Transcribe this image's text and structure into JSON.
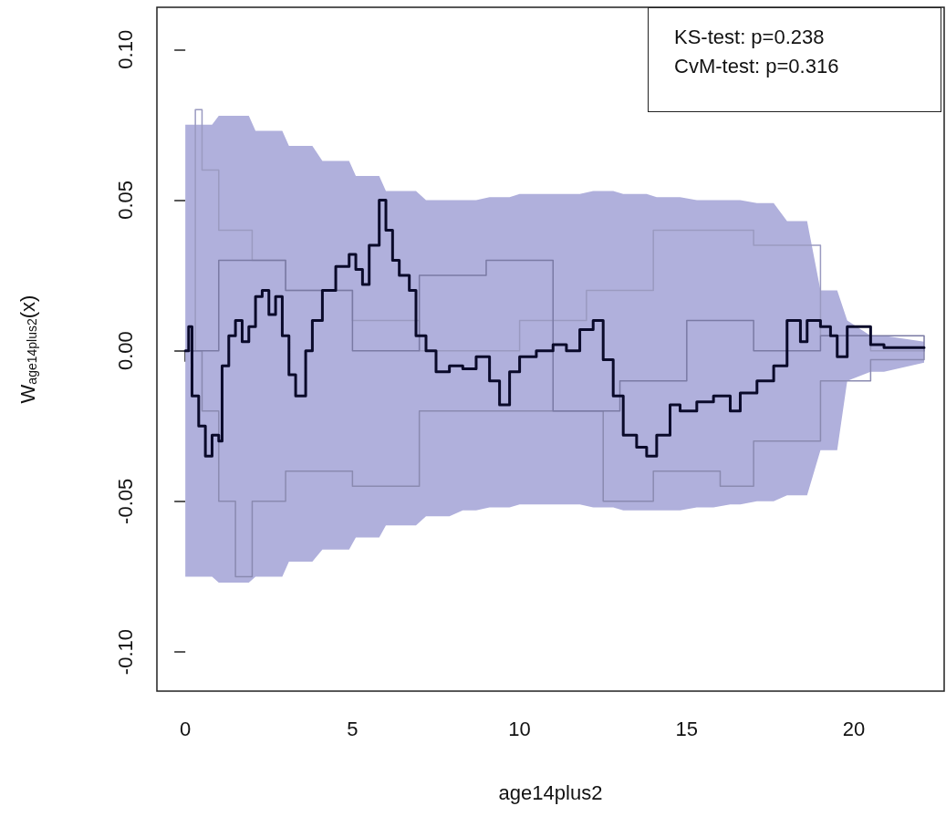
{
  "chart_data": {
    "type": "step",
    "xlabel": "age14plus2",
    "ylabel": "W$_{age14plus2}$(x)",
    "annotations": [
      "KS-test: p=0.238",
      "CvM-test: p=0.316"
    ],
    "xlim": [
      -0.85,
      22.7
    ],
    "ylim": [
      -0.113,
      0.114
    ],
    "xticks": [
      0,
      5,
      10,
      15,
      20
    ],
    "yticks": [
      {
        "value": -0.1,
        "label": "-0.10"
      },
      {
        "value": -0.05,
        "label": "-0.05"
      },
      {
        "value": 0,
        "label": "0.00"
      },
      {
        "value": 0.05,
        "label": "0.05"
      },
      {
        "value": 0.1,
        "label": "0.10"
      }
    ],
    "grid": false,
    "marker": "none",
    "line_style": "solid",
    "series": [
      {
        "color": "#9a9ac0",
        "x": [
          0,
          0.3,
          0.5,
          1,
          2,
          3,
          5,
          7,
          10,
          12,
          14,
          16,
          17,
          19,
          20.5,
          22.1
        ],
        "values": [
          0,
          0.08,
          0.06,
          0.04,
          0.03,
          0.02,
          0.01,
          0,
          0.01,
          0.02,
          0.04,
          0.04,
          0.035,
          0.005,
          0,
          0
        ]
      },
      {
        "color": "#8a8ab0",
        "x": [
          0,
          0.5,
          1,
          1.5,
          2,
          3,
          5,
          7,
          10,
          12.5,
          14,
          16,
          17,
          19,
          20.5,
          22.1
        ],
        "values": [
          0,
          -0.02,
          -0.05,
          -0.075,
          -0.05,
          -0.04,
          -0.045,
          -0.02,
          -0.02,
          -0.05,
          -0.04,
          -0.045,
          -0.03,
          -0.01,
          -0.003,
          0
        ]
      },
      {
        "color": "#7a7aa4",
        "x": [
          0,
          1,
          3,
          5,
          7,
          9,
          11,
          13,
          15,
          17,
          19,
          22.1
        ],
        "values": [
          0,
          0.03,
          0.02,
          0,
          0.025,
          0.03,
          -0.02,
          -0.01,
          0.01,
          0,
          0.005,
          0
        ]
      },
      {
        "color": "#0a0a2a",
        "lower": [
          -0.075,
          -0.075,
          -0.075,
          -0.075,
          -0.075,
          -0.075,
          -0.077,
          -0.077,
          -0.077,
          -0.077,
          -0.077,
          -0.077,
          -0.075,
          -0.075,
          -0.075,
          -0.075,
          -0.075,
          -0.07,
          -0.07,
          -0.07,
          -0.07,
          -0.066,
          -0.066,
          -0.066,
          -0.062,
          -0.062,
          -0.062,
          -0.062,
          -0.058,
          -0.058,
          -0.058,
          -0.058,
          -0.058,
          -0.055,
          -0.055,
          -0.055,
          -0.053,
          -0.053,
          -0.052,
          -0.052,
          -0.052,
          -0.051,
          -0.051,
          -0.051,
          -0.051,
          -0.051,
          -0.052,
          -0.052,
          -0.052,
          -0.053,
          -0.053,
          -0.053,
          -0.053,
          -0.053,
          -0.053,
          -0.052,
          -0.052,
          -0.051,
          -0.051,
          -0.05,
          -0.05,
          -0.048,
          -0.048,
          -0.048,
          -0.033,
          -0.033,
          -0.033,
          -0.01,
          -0.007,
          -0.007,
          -0.004
        ],
        "upper": [
          0.075,
          0.075,
          0.075,
          0.075,
          0.075,
          0.075,
          0.078,
          0.078,
          0.078,
          0.078,
          0.078,
          0.078,
          0.073,
          0.073,
          0.073,
          0.073,
          0.073,
          0.068,
          0.068,
          0.068,
          0.068,
          0.063,
          0.063,
          0.063,
          0.058,
          0.058,
          0.058,
          0.058,
          0.053,
          0.053,
          0.053,
          0.053,
          0.053,
          0.05,
          0.05,
          0.05,
          0.05,
          0.05,
          0.051,
          0.051,
          0.051,
          0.052,
          0.052,
          0.052,
          0.052,
          0.052,
          0.053,
          0.053,
          0.053,
          0.052,
          0.052,
          0.052,
          0.051,
          0.051,
          0.051,
          0.05,
          0.05,
          0.05,
          0.05,
          0.049,
          0.049,
          0.043,
          0.043,
          0.043,
          0.02,
          0.02,
          0.02,
          0.01,
          0.005,
          0.005,
          0.003
        ],
        "x": [
          0,
          0.1,
          0.2,
          0.4,
          0.6,
          0.8,
          1,
          1.1,
          1.3,
          1.5,
          1.7,
          1.9,
          2.1,
          2.3,
          2.5,
          2.7,
          2.9,
          3.1,
          3.3,
          3.6,
          3.8,
          4.1,
          4.5,
          4.9,
          5.1,
          5.3,
          5.5,
          5.8,
          6,
          6.2,
          6.4,
          6.7,
          6.9,
          7.2,
          7.5,
          7.9,
          8.3,
          8.7,
          9.1,
          9.4,
          9.7,
          10,
          10.5,
          11,
          11.4,
          11.8,
          12.2,
          12.5,
          12.8,
          13.1,
          13.5,
          13.8,
          14.1,
          14.5,
          14.8,
          15.3,
          15.8,
          16.3,
          16.6,
          17.1,
          17.6,
          18,
          18.4,
          18.6,
          19,
          19.3,
          19.5,
          19.8,
          20.5,
          20.9,
          22.1
        ],
        "values": [
          0,
          0.008,
          -0.015,
          -0.025,
          -0.035,
          -0.028,
          -0.03,
          -0.005,
          0.005,
          0.01,
          0.003,
          0.008,
          0.018,
          0.02,
          0.012,
          0.018,
          0.005,
          -0.008,
          -0.015,
          0,
          0.01,
          0.02,
          0.028,
          0.032,
          0.027,
          0.022,
          0.035,
          0.05,
          0.04,
          0.03,
          0.025,
          0.02,
          0.005,
          0,
          -0.007,
          -0.005,
          -0.006,
          -0.002,
          -0.01,
          -0.018,
          -0.007,
          -0.002,
          0,
          0.002,
          0,
          0.007,
          0.01,
          -0.003,
          -0.015,
          -0.028,
          -0.032,
          -0.035,
          -0.028,
          -0.018,
          -0.02,
          -0.017,
          -0.015,
          -0.02,
          -0.014,
          -0.01,
          -0.005,
          0.01,
          0.003,
          0.01,
          0.008,
          0.005,
          -0.002,
          0.008,
          0.002,
          0.001,
          0.001
        ]
      }
    ]
  }
}
